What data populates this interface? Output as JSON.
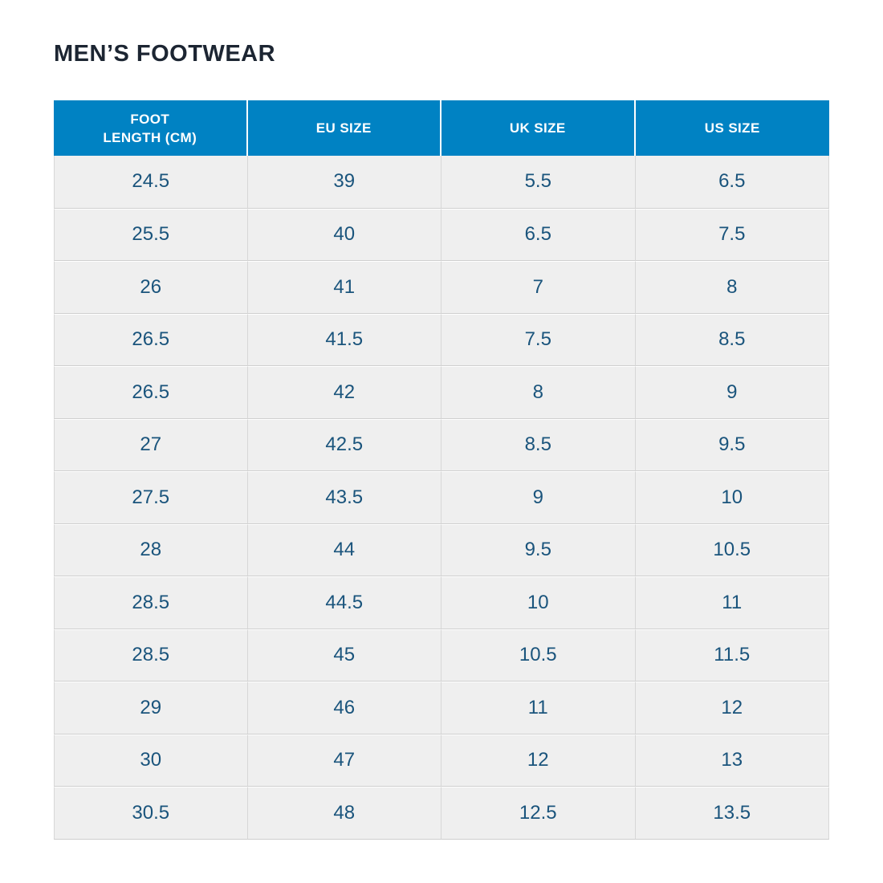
{
  "page": {
    "title": "MEN’S FOOTWEAR"
  },
  "colors": {
    "page_bg": "#ffffff",
    "title_text": "#1c2532",
    "header_bg": "#0082c3",
    "header_text": "#ffffff",
    "cell_bg": "#efefef",
    "cell_text": "#1a547c",
    "grid_line": "#d7d7d7"
  },
  "table": {
    "columns": [
      "FOOT\nLENGTH (CM)",
      "EU SIZE",
      "UK SIZE",
      "US SIZE"
    ],
    "rows": [
      [
        "24.5",
        "39",
        "5.5",
        "6.5"
      ],
      [
        "25.5",
        "40",
        "6.5",
        "7.5"
      ],
      [
        "26",
        "41",
        "7",
        "8"
      ],
      [
        "26.5",
        "41.5",
        "7.5",
        "8.5"
      ],
      [
        "26.5",
        "42",
        "8",
        "9"
      ],
      [
        "27",
        "42.5",
        "8.5",
        "9.5"
      ],
      [
        "27.5",
        "43.5",
        "9",
        "10"
      ],
      [
        "28",
        "44",
        "9.5",
        "10.5"
      ],
      [
        "28.5",
        "44.5",
        "10",
        "11"
      ],
      [
        "28.5",
        "45",
        "10.5",
        "11.5"
      ],
      [
        "29",
        "46",
        "11",
        "12"
      ],
      [
        "30",
        "47",
        "12",
        "13"
      ],
      [
        "30.5",
        "48",
        "12.5",
        "13.5"
      ]
    ]
  }
}
